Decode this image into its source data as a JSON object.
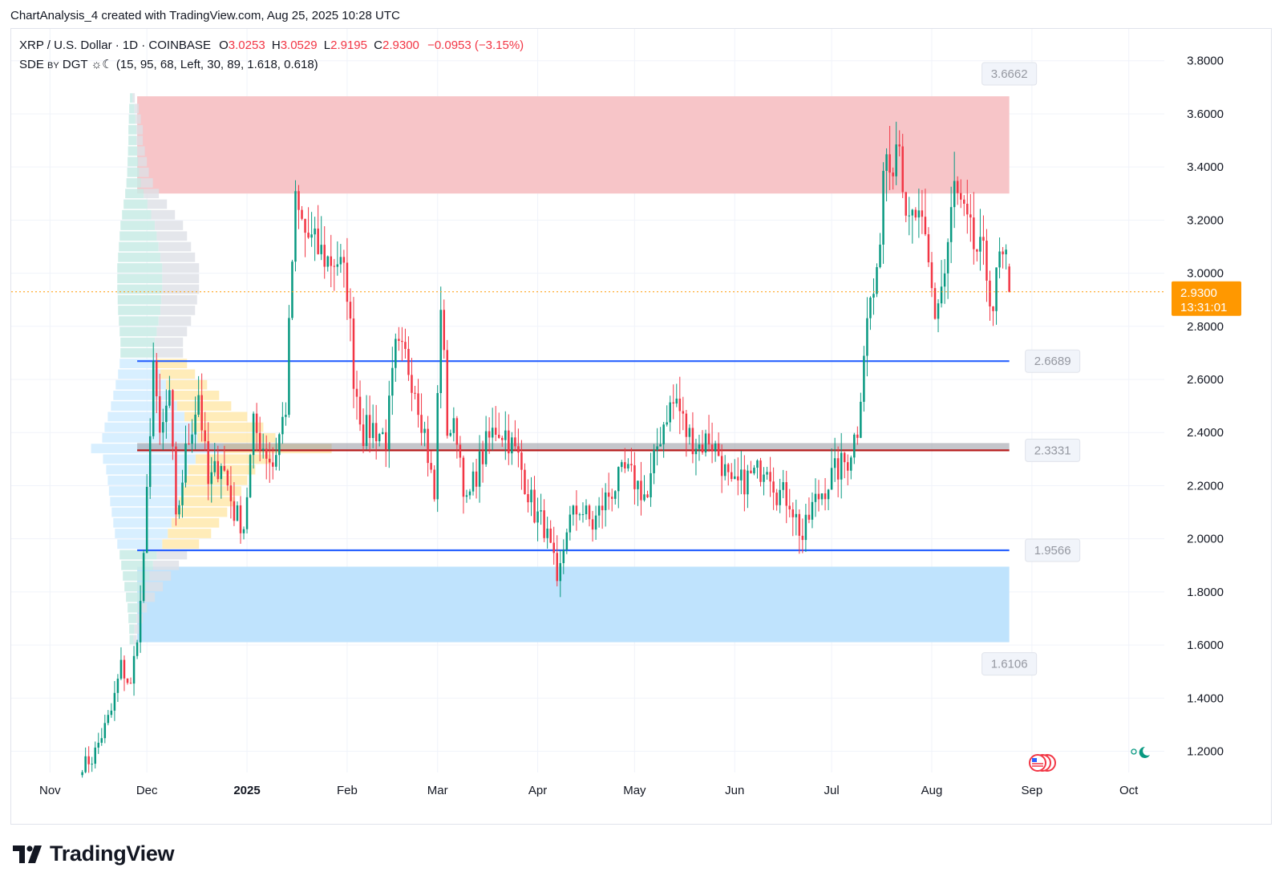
{
  "header": {
    "credit": "ChartAnalysis_4 created with TradingView.com, Aug 25, 2025 10:28 UTC"
  },
  "legend": {
    "symbol": "XRP / U.S. Dollar · 1D · COINBASE",
    "open_label": "O",
    "open": "3.0253",
    "high_label": "H",
    "high": "3.0529",
    "low_label": "L",
    "low": "2.9195",
    "close_label": "C",
    "close": "2.9300",
    "change": "−0.0953 (−3.15%)",
    "indicator_name": "SDE",
    "indicator_by": "BY",
    "indicator_author": "DGT",
    "indicator_params": "(15, 95, 68, Left, 30, 89, 1.618, 0.618)"
  },
  "brand": {
    "name": "TradingView"
  },
  "colors": {
    "up": "#089981",
    "down": "#f23645",
    "level_line": "#2962ff",
    "poc_line": "#b71c1c",
    "resistance_zone": "#f7c5c8",
    "support_zone": "#bfe3fd",
    "current_price_bg": "#ff9800",
    "value_area": "#ffe7a8"
  },
  "chart_data": {
    "type": "candlestick",
    "symbol": "XRP / U.S. Dollar",
    "interval": "1D",
    "exchange": "COINBASE",
    "y_axis": {
      "position": "right",
      "ticks": [
        "1.2000",
        "1.4000",
        "1.6000",
        "1.8000",
        "2.0000",
        "2.2000",
        "2.4000",
        "2.6000",
        "2.8000",
        "3.0000",
        "3.2000",
        "3.4000",
        "3.6000",
        "3.8000"
      ],
      "range": [
        1.12,
        3.92
      ]
    },
    "x_axis": {
      "ticks": [
        {
          "label": "Nov",
          "date": "2024-11-01"
        },
        {
          "label": "Dec",
          "date": "2024-12-01"
        },
        {
          "label": "2025",
          "date": "2025-01-01",
          "bold": true
        },
        {
          "label": "Feb",
          "date": "2025-02-01"
        },
        {
          "label": "Mar",
          "date": "2025-03-01"
        },
        {
          "label": "Apr",
          "date": "2025-04-01"
        },
        {
          "label": "May",
          "date": "2025-05-01"
        },
        {
          "label": "Jun",
          "date": "2025-06-01"
        },
        {
          "label": "Jul",
          "date": "2025-07-01"
        },
        {
          "label": "Aug",
          "date": "2025-08-01"
        },
        {
          "label": "Sep",
          "date": "2025-09-01"
        },
        {
          "label": "Oct",
          "date": "2025-10-01"
        }
      ],
      "range": [
        "2024-10-20",
        "2025-10-12"
      ]
    },
    "grid": true,
    "levels": [
      {
        "label": "3.6662",
        "value": 3.6662,
        "kind": "zone-top"
      },
      {
        "label": "2.6689",
        "value": 2.6689,
        "kind": "line"
      },
      {
        "label": "2.3331",
        "value": 2.3331,
        "kind": "poc"
      },
      {
        "label": "1.9566",
        "value": 1.9566,
        "kind": "line"
      },
      {
        "label": "1.6106",
        "value": 1.6106,
        "kind": "zone-bottom"
      }
    ],
    "zones": [
      {
        "name": "resistance",
        "from": 3.3,
        "to": 3.6662,
        "start": "2024-11-28",
        "end": "2025-08-25"
      },
      {
        "name": "support",
        "from": 1.6106,
        "to": 1.895,
        "start": "2024-11-28",
        "end": "2025-08-25"
      }
    ],
    "current_price": {
      "value": 2.93,
      "label": "2.9300",
      "countdown": "13:31:01"
    },
    "anchors": [
      [
        "2024-11-11",
        1.15
      ],
      [
        "2024-11-14",
        1.17
      ],
      [
        "2024-11-17",
        1.26
      ],
      [
        "2024-11-20",
        1.35
      ],
      [
        "2024-11-23",
        1.52
      ],
      [
        "2024-11-26",
        1.44
      ],
      [
        "2024-11-29",
        1.75
      ],
      [
        "2024-12-02",
        2.35
      ],
      [
        "2024-12-03",
        2.72
      ],
      [
        "2024-12-05",
        2.35
      ],
      [
        "2024-12-08",
        2.55
      ],
      [
        "2024-12-10",
        2.05
      ],
      [
        "2024-12-13",
        2.32
      ],
      [
        "2024-12-17",
        2.55
      ],
      [
        "2024-12-20",
        2.2
      ],
      [
        "2024-12-24",
        2.3
      ],
      [
        "2024-12-28",
        2.1
      ],
      [
        "2024-12-31",
        2.05
      ],
      [
        "2025-01-03",
        2.42
      ],
      [
        "2025-01-06",
        2.35
      ],
      [
        "2025-01-09",
        2.28
      ],
      [
        "2025-01-13",
        2.5
      ],
      [
        "2025-01-15",
        3.05
      ],
      [
        "2025-01-16",
        3.25
      ],
      [
        "2025-01-19",
        3.15
      ],
      [
        "2025-01-22",
        3.1
      ],
      [
        "2025-01-26",
        3.05
      ],
      [
        "2025-01-29",
        3.05
      ],
      [
        "2025-02-01",
        2.95
      ],
      [
        "2025-02-03",
        2.62
      ],
      [
        "2025-02-06",
        2.4
      ],
      [
        "2025-02-09",
        2.42
      ],
      [
        "2025-02-13",
        2.38
      ],
      [
        "2025-02-16",
        2.7
      ],
      [
        "2025-02-19",
        2.68
      ],
      [
        "2025-02-22",
        2.58
      ],
      [
        "2025-02-25",
        2.4
      ],
      [
        "2025-02-28",
        2.15
      ],
      [
        "2025-03-02",
        2.9
      ],
      [
        "2025-03-04",
        2.42
      ],
      [
        "2025-03-07",
        2.4
      ],
      [
        "2025-03-10",
        2.12
      ],
      [
        "2025-03-13",
        2.25
      ],
      [
        "2025-03-16",
        2.35
      ],
      [
        "2025-03-19",
        2.42
      ],
      [
        "2025-03-22",
        2.4
      ],
      [
        "2025-03-26",
        2.3
      ],
      [
        "2025-03-31",
        2.1
      ],
      [
        "2025-04-03",
        2.05
      ],
      [
        "2025-04-06",
        1.9
      ],
      [
        "2025-04-07",
        1.8
      ],
      [
        "2025-04-10",
        2.05
      ],
      [
        "2025-04-14",
        2.12
      ],
      [
        "2025-04-18",
        2.05
      ],
      [
        "2025-04-22",
        2.15
      ],
      [
        "2025-04-25",
        2.2
      ],
      [
        "2025-04-28",
        2.25
      ],
      [
        "2025-05-01",
        2.22
      ],
      [
        "2025-05-05",
        2.15
      ],
      [
        "2025-05-08",
        2.35
      ],
      [
        "2025-05-11",
        2.48
      ],
      [
        "2025-05-14",
        2.52
      ],
      [
        "2025-05-17",
        2.4
      ],
      [
        "2025-05-21",
        2.35
      ],
      [
        "2025-05-24",
        2.38
      ],
      [
        "2025-05-27",
        2.32
      ],
      [
        "2025-05-31",
        2.18
      ],
      [
        "2025-06-04",
        2.22
      ],
      [
        "2025-06-08",
        2.25
      ],
      [
        "2025-06-11",
        2.3
      ],
      [
        "2025-06-14",
        2.18
      ],
      [
        "2025-06-18",
        2.15
      ],
      [
        "2025-06-22",
        2.0
      ],
      [
        "2025-06-25",
        2.12
      ],
      [
        "2025-06-28",
        2.18
      ],
      [
        "2025-07-02",
        2.25
      ],
      [
        "2025-07-06",
        2.3
      ],
      [
        "2025-07-09",
        2.42
      ],
      [
        "2025-07-11",
        2.72
      ],
      [
        "2025-07-13",
        2.9
      ],
      [
        "2025-07-15",
        2.95
      ],
      [
        "2025-07-17",
        3.4
      ],
      [
        "2025-07-18",
        3.48
      ],
      [
        "2025-07-20",
        3.45
      ],
      [
        "2025-07-22",
        3.55
      ],
      [
        "2025-07-24",
        3.15
      ],
      [
        "2025-07-27",
        3.22
      ],
      [
        "2025-07-30",
        3.1
      ],
      [
        "2025-08-02",
        2.85
      ],
      [
        "2025-08-05",
        3.0
      ],
      [
        "2025-08-08",
        3.32
      ],
      [
        "2025-08-11",
        3.2
      ],
      [
        "2025-08-14",
        3.1
      ],
      [
        "2025-08-17",
        3.05
      ],
      [
        "2025-08-20",
        2.88
      ],
      [
        "2025-08-22",
        3.05
      ],
      [
        "2025-08-24",
        3.02
      ],
      [
        "2025-08-25",
        2.93
      ]
    ],
    "volume_profile": {
      "price_range": [
        1.61,
        3.67
      ],
      "poc": 2.3331,
      "value_area": [
        1.96,
        2.67
      ],
      "bins": [
        [
          1.62,
          3
        ],
        [
          1.66,
          4
        ],
        [
          1.7,
          6
        ],
        [
          1.74,
          8
        ],
        [
          1.78,
          12
        ],
        [
          1.82,
          16
        ],
        [
          1.86,
          20
        ],
        [
          1.9,
          24
        ],
        [
          1.94,
          28
        ],
        [
          1.98,
          34
        ],
        [
          2.02,
          40
        ],
        [
          2.06,
          44
        ],
        [
          2.1,
          48
        ],
        [
          2.14,
          52
        ],
        [
          2.18,
          55
        ],
        [
          2.22,
          58
        ],
        [
          2.26,
          62
        ],
        [
          2.3,
          70
        ],
        [
          2.34,
          100
        ],
        [
          2.38,
          72
        ],
        [
          2.42,
          66
        ],
        [
          2.46,
          58
        ],
        [
          2.5,
          50
        ],
        [
          2.54,
          44
        ],
        [
          2.58,
          38
        ],
        [
          2.62,
          32
        ],
        [
          2.66,
          28
        ],
        [
          2.7,
          26
        ],
        [
          2.74,
          26
        ],
        [
          2.78,
          28
        ],
        [
          2.82,
          30
        ],
        [
          2.86,
          32
        ],
        [
          2.9,
          33
        ],
        [
          2.94,
          34
        ],
        [
          2.98,
          34
        ],
        [
          3.02,
          34
        ],
        [
          3.06,
          32
        ],
        [
          3.1,
          30
        ],
        [
          3.14,
          28
        ],
        [
          3.18,
          26
        ],
        [
          3.22,
          22
        ],
        [
          3.26,
          18
        ],
        [
          3.3,
          14
        ],
        [
          3.34,
          11
        ],
        [
          3.38,
          9
        ],
        [
          3.42,
          8
        ],
        [
          3.46,
          7
        ],
        [
          3.5,
          6
        ],
        [
          3.54,
          6
        ],
        [
          3.58,
          5
        ],
        [
          3.62,
          4
        ],
        [
          3.66,
          2
        ]
      ]
    }
  }
}
